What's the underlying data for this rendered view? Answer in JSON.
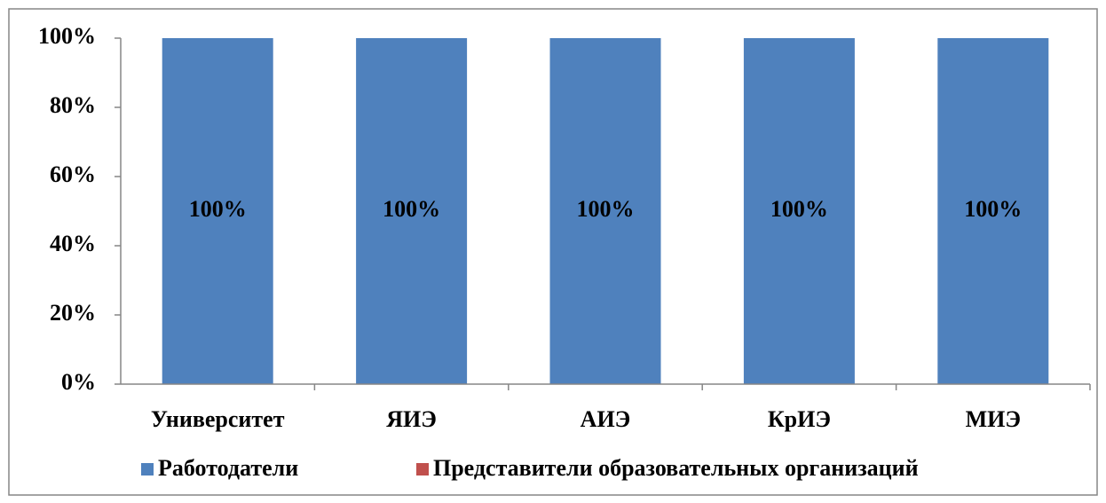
{
  "chart_data": {
    "type": "stacked_bar",
    "categories": [
      "Университет",
      "ЯИЭ",
      "АИЭ",
      "КрИЭ",
      "МИЭ"
    ],
    "series": [
      {
        "name": "Работодатели",
        "color": "#4f81bd",
        "values": [
          100,
          100,
          100,
          100,
          100
        ],
        "value_labels": [
          "100%",
          "100%",
          "100%",
          "100%",
          "100%"
        ]
      },
      {
        "name": "Представители образовательных организаций",
        "color": "#c0504d",
        "values": [
          0,
          0,
          0,
          0,
          0
        ]
      }
    ],
    "ylim": [
      0,
      100
    ],
    "yticks": [
      {
        "value": 0,
        "label": "0%"
      },
      {
        "value": 20,
        "label": "20%"
      },
      {
        "value": 40,
        "label": "40%"
      },
      {
        "value": 60,
        "label": "60%"
      },
      {
        "value": 80,
        "label": "80%"
      },
      {
        "value": 100,
        "label": "100%"
      }
    ],
    "legend": "bottom"
  }
}
